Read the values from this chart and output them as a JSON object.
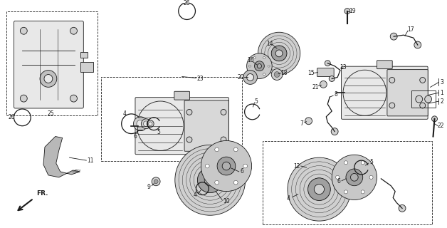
{
  "bg_color": "#ffffff",
  "line_color": "#1a1a1a",
  "gray_light": "#d0d0d0",
  "gray_mid": "#a0a0a0",
  "gray_dark": "#606060",
  "gray_fill": "#e8e8e8"
}
